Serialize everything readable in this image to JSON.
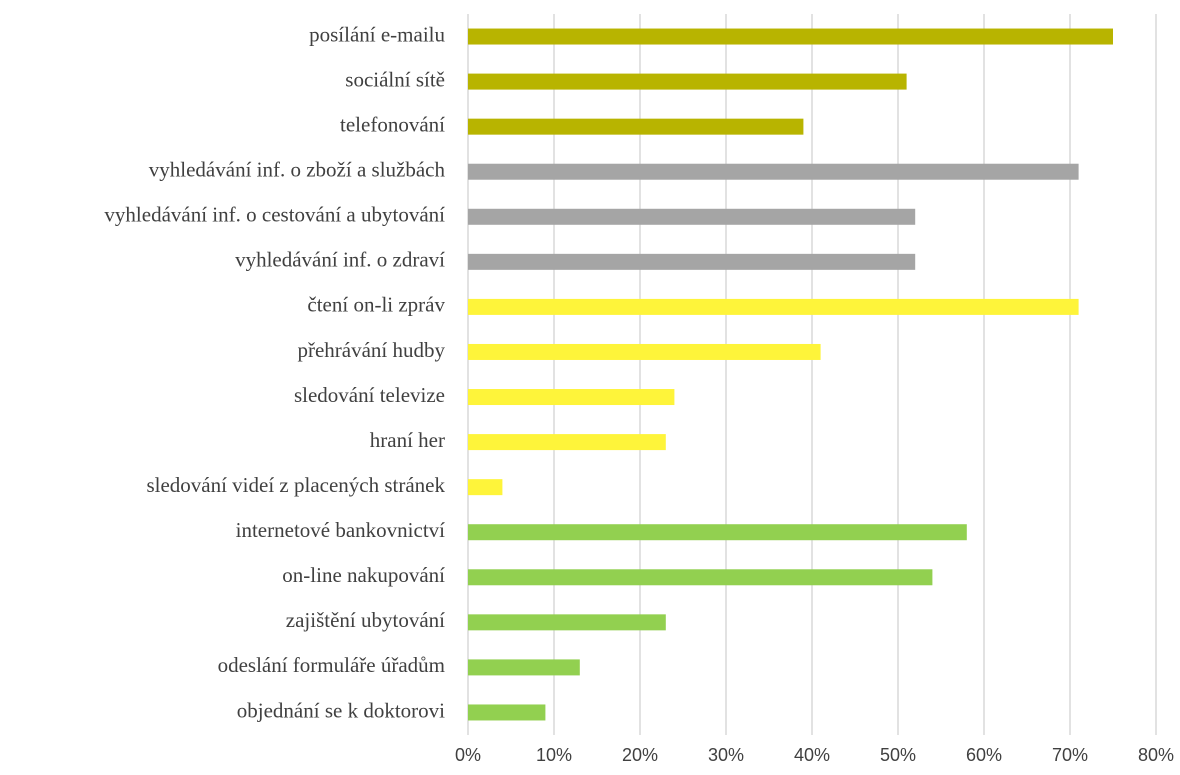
{
  "chart_data": {
    "type": "bar",
    "orientation": "horizontal",
    "categories": [
      "posílání e-mailu",
      "sociální sítě",
      "telefonování",
      "vyhledávání inf. o zboží a službách",
      "vyhledávání inf. o cestování a ubytování",
      "vyhledávání inf. o zdraví",
      "čtení on-li zpráv",
      "přehrávání hudby",
      "sledování televize",
      "hraní her",
      "sledování videí z placených stránek",
      "internetové bankovnictví",
      "on-line nakupování",
      "zajištění ubytování",
      "odeslání formuláře úřadům",
      "objednání se k doktorovi"
    ],
    "values": [
      75,
      51,
      39,
      71,
      52,
      52,
      71,
      41,
      24,
      23,
      4,
      58,
      54,
      23,
      13,
      9
    ],
    "colors": [
      "#b8b400",
      "#b8b400",
      "#b8b400",
      "#a5a5a5",
      "#a5a5a5",
      "#a5a5a5",
      "#fef43a",
      "#fef43a",
      "#fef43a",
      "#fef43a",
      "#fef43a",
      "#92d050",
      "#92d050",
      "#92d050",
      "#92d050",
      "#92d050"
    ],
    "xlim": [
      0,
      80
    ],
    "xticks": [
      {
        "value": 0,
        "label": "0%"
      },
      {
        "value": 10,
        "label": "10%"
      },
      {
        "value": 20,
        "label": "20%"
      },
      {
        "value": 30,
        "label": "30%"
      },
      {
        "value": 40,
        "label": "40%"
      },
      {
        "value": 50,
        "label": "50%"
      },
      {
        "value": 60,
        "label": "60%"
      },
      {
        "value": 70,
        "label": "70%"
      },
      {
        "value": 80,
        "label": "80%"
      }
    ],
    "grid": true
  }
}
